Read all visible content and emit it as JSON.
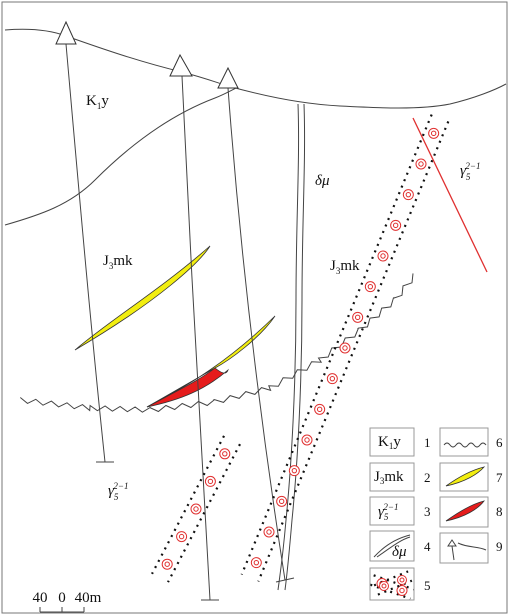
{
  "section_labels": {
    "k1y": [
      "K",
      "1",
      "y"
    ],
    "j3mk_left": [
      "J",
      "3",
      "mk"
    ],
    "j3mk_right": [
      "J",
      "3",
      "mk"
    ],
    "delta_mu": "δμ",
    "gamma_right": [
      "γ",
      "5",
      "2−1"
    ],
    "gamma_left": [
      "γ",
      "5",
      "2−1"
    ]
  },
  "scale": [
    "40",
    "0",
    "40m"
  ],
  "legend": [
    {
      "number": "1",
      "symbol": [
        "K",
        "1",
        "y"
      ]
    },
    {
      "number": "2",
      "symbol": [
        "J",
        "3",
        "mk"
      ]
    },
    {
      "number": "3",
      "symbol": [
        "γ",
        "5",
        "2−1"
      ]
    },
    {
      "number": "4",
      "symbol": "δμ"
    },
    {
      "number": "5"
    },
    {
      "number": "6"
    },
    {
      "number": "7"
    },
    {
      "number": "8"
    },
    {
      "number": "9"
    }
  ]
}
